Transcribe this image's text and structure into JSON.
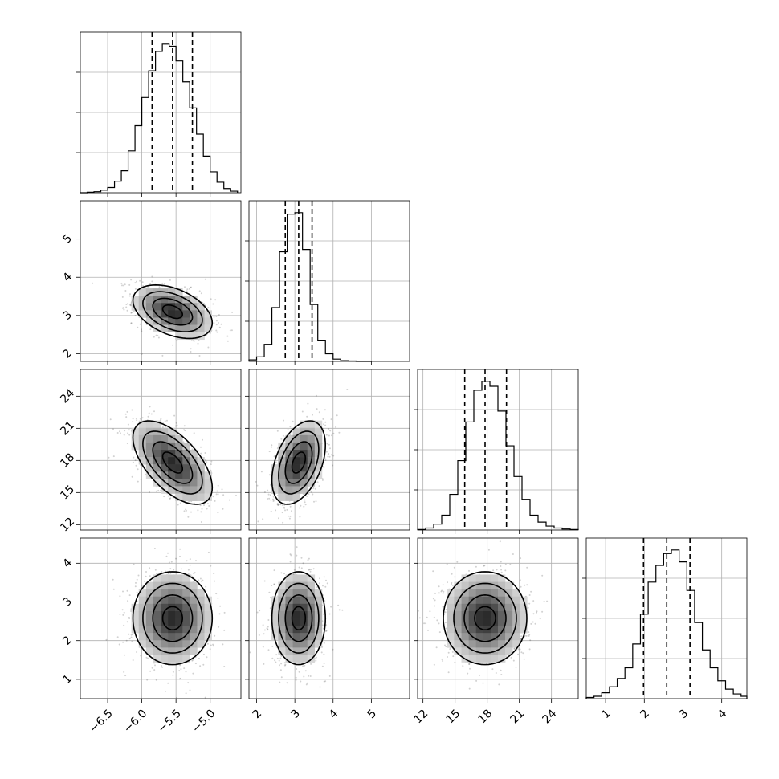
{
  "chart_data": {
    "type": "corner",
    "title": "",
    "grid": true,
    "parameters": [
      {
        "range": [
          -6.9,
          -4.55
        ],
        "ticks": [
          -6.5,
          -6.0,
          -5.5,
          -5.0
        ],
        "tick_labels": [
          "−6.5",
          "−6.0",
          "−5.5",
          "−5.0"
        ],
        "median": -5.55,
        "q16": -5.85,
        "q84": -5.26,
        "mean": -5.55,
        "sd": 0.29
      },
      {
        "range": [
          1.8,
          6.0
        ],
        "ticks": [
          2,
          3,
          4,
          5
        ],
        "tick_labels": [
          "2",
          "3",
          "4",
          "5"
        ],
        "median": 3.1,
        "q16": 2.75,
        "q84": 3.45,
        "mean": 3.1,
        "sd": 0.35
      },
      {
        "range": [
          11.5,
          26.5
        ],
        "ticks": [
          12,
          15,
          18,
          21,
          24
        ],
        "tick_labels": [
          "12",
          "15",
          "18",
          "21",
          "24"
        ],
        "median": 17.8,
        "q16": 15.9,
        "q84": 19.8,
        "mean": 17.8,
        "sd": 1.95
      },
      {
        "range": [
          0.5,
          4.65
        ],
        "ticks": [
          1,
          2,
          3,
          4
        ],
        "tick_labels": [
          "1",
          "2",
          "3",
          "4"
        ],
        "median": 2.58,
        "q16": 1.98,
        "q84": 3.18,
        "mean": 2.58,
        "sd": 0.6
      }
    ],
    "histograms": [
      {
        "param": 0,
        "bin_edges": [
          -6.9,
          -6.8,
          -6.7,
          -6.6,
          -6.5,
          -6.4,
          -6.3,
          -6.2,
          -6.1,
          -6.0,
          -5.9,
          -5.8,
          -5.7,
          -5.6,
          -5.5,
          -5.4,
          -5.3,
          -5.2,
          -5.1,
          -5.0,
          -4.9,
          -4.8,
          -4.7,
          -4.6
        ],
        "counts": [
          0,
          1,
          2,
          5,
          10,
          22,
          42,
          80,
          128,
          182,
          233,
          270,
          284,
          280,
          252,
          212,
          162,
          112,
          70,
          40,
          20,
          8,
          3
        ]
      },
      {
        "param": 1,
        "bin_edges": [
          1.8,
          2.0,
          2.2,
          2.4,
          2.6,
          2.8,
          3.0,
          3.2,
          3.4,
          3.6,
          3.8,
          4.0,
          4.2,
          4.4,
          4.6,
          4.8,
          5.0
        ],
        "counts": [
          4,
          12,
          45,
          142,
          289,
          388,
          392,
          295,
          150,
          56,
          20,
          6,
          2,
          1,
          0,
          0
        ]
      },
      {
        "param": 2,
        "bin_edges": [
          11.5,
          12.25,
          13.0,
          13.75,
          14.5,
          15.25,
          16.0,
          16.75,
          17.5,
          18.25,
          19.0,
          19.75,
          20.5,
          21.25,
          22.0,
          22.75,
          23.5,
          24.25,
          25.0,
          25.75,
          26.5
        ],
        "counts": [
          1,
          4,
          12,
          30,
          72,
          140,
          218,
          282,
          300,
          290,
          240,
          170,
          108,
          62,
          30,
          16,
          8,
          4,
          2,
          1
        ]
      },
      {
        "param": 3,
        "bin_edges": [
          0.5,
          0.7,
          0.9,
          1.1,
          1.3,
          1.5,
          1.7,
          1.9,
          2.1,
          2.3,
          2.5,
          2.7,
          2.9,
          3.1,
          3.3,
          3.5,
          3.7,
          3.9,
          4.1,
          4.3,
          4.5,
          4.65
        ],
        "counts": [
          2,
          4,
          10,
          20,
          34,
          52,
          92,
          142,
          196,
          224,
          244,
          250,
          230,
          182,
          128,
          82,
          52,
          30,
          16,
          8,
          4
        ]
      }
    ],
    "correlations": [
      {
        "x": 0,
        "y": 1,
        "rho": -0.42
      },
      {
        "x": 0,
        "y": 2,
        "rho": -0.6
      },
      {
        "x": 1,
        "y": 2,
        "rho": 0.42
      },
      {
        "x": 0,
        "y": 3,
        "rho": 0.0
      },
      {
        "x": 1,
        "y": 3,
        "rho": 0.0
      },
      {
        "x": 2,
        "y": 3,
        "rho": 0.0
      }
    ],
    "contour_levels_sigma": [
      0.5,
      1.0,
      1.5,
      2.0
    ],
    "line_color": "#000000",
    "scatter_color": "#000000"
  }
}
